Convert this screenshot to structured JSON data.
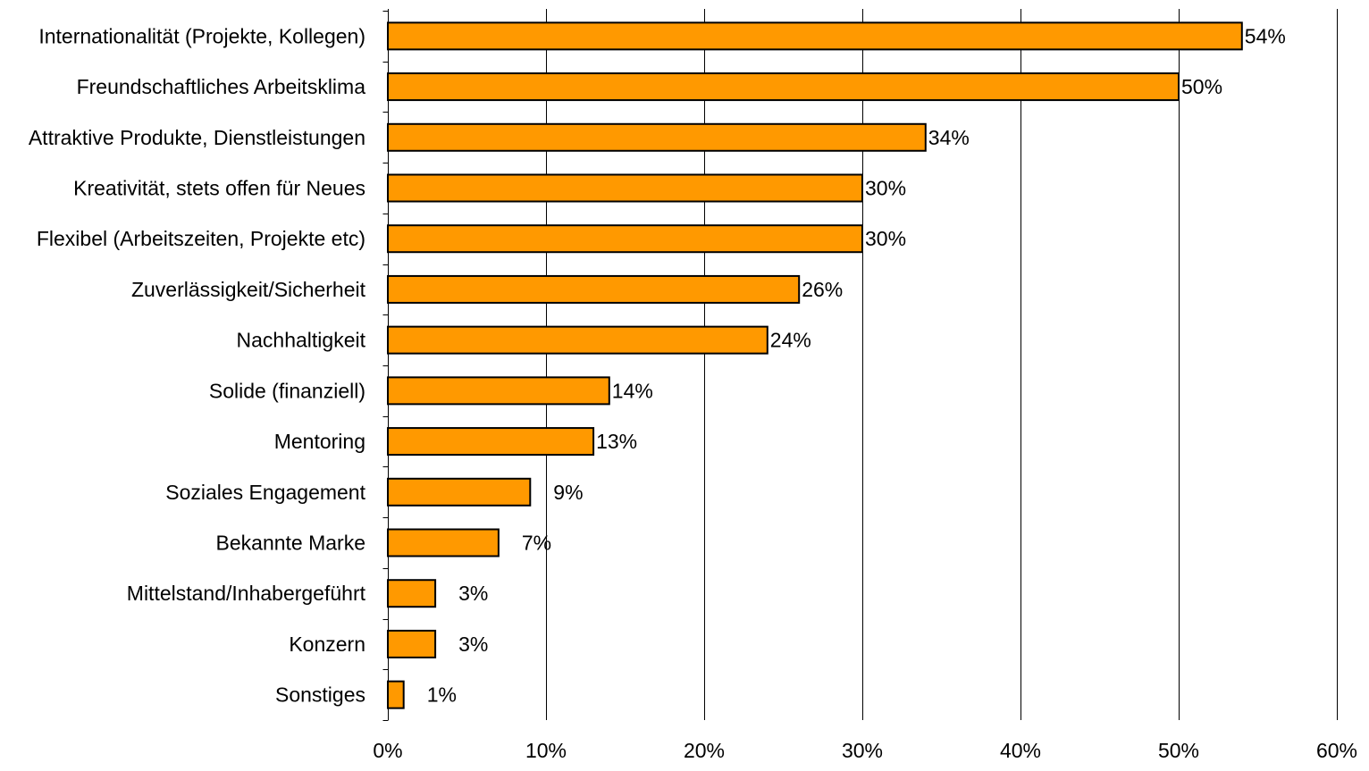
{
  "chart_data": {
    "type": "bar",
    "orientation": "horizontal",
    "categories": [
      "Internationalität (Projekte, Kollegen)",
      "Freundschaftliches Arbeitsklima",
      "Attraktive Produkte, Dienstleistungen",
      "Kreativität, stets offen für Neues",
      "Flexibel (Arbeitszeiten, Projekte etc)",
      "Zuverlässigkeit/Sicherheit",
      "Nachhaltigkeit",
      "Solide (finanziell)",
      "Mentoring",
      "Soziales Engagement",
      "Bekannte Marke",
      "Mittelstand/Inhabergeführt",
      "Konzern",
      "Sonstiges"
    ],
    "values": [
      54,
      50,
      34,
      30,
      30,
      26,
      24,
      14,
      13,
      9,
      7,
      3,
      3,
      1
    ],
    "data_labels": [
      "54%",
      "50%",
      "34%",
      "30%",
      "30%",
      "26%",
      "24%",
      "14%",
      "13%",
      "9%",
      "7%",
      "3%",
      "3%",
      "1%"
    ],
    "xlim": [
      0,
      60
    ],
    "x_ticks": [
      "0%",
      "10%",
      "20%",
      "30%",
      "40%",
      "50%",
      "60%"
    ],
    "grid": "vertical",
    "legend": "none",
    "bar_color": "#FF9900",
    "bar_edge_color": "#000000"
  }
}
